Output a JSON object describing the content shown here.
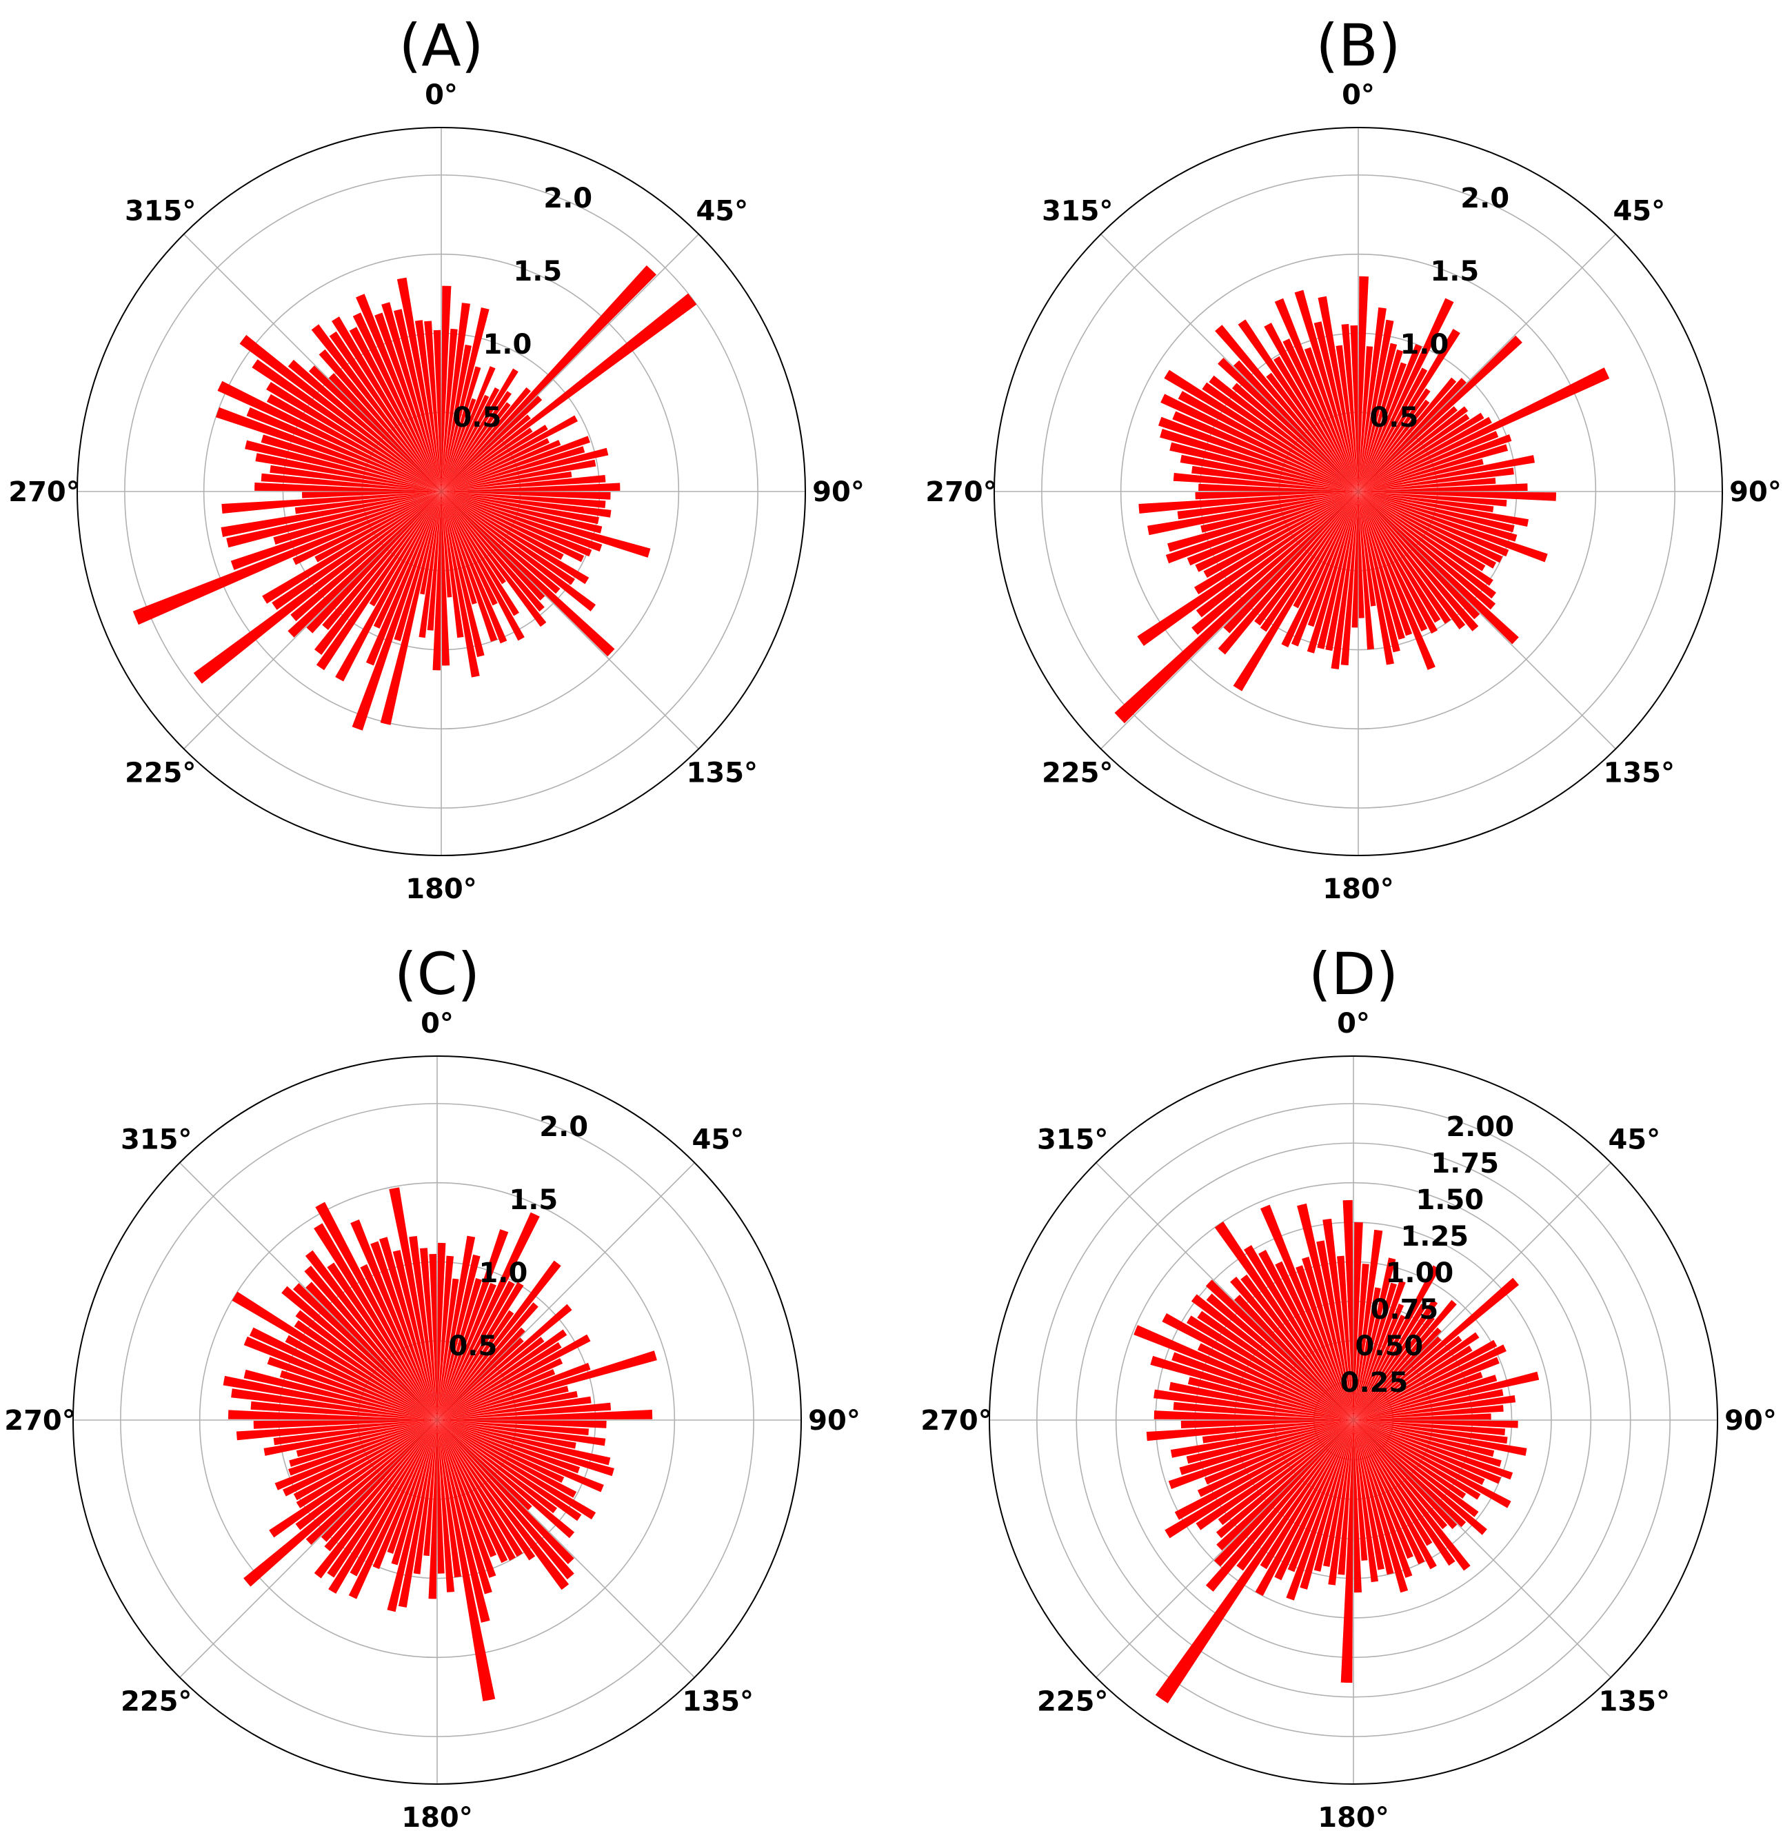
{
  "chart_data": [
    {
      "type": "bar",
      "projection": "polar",
      "title": "(A)",
      "theta_zero": "N",
      "theta_direction": "clockwise",
      "theta_ticks": [
        "0°",
        "45°",
        "90°",
        "135°",
        "180°",
        "225°",
        "270°",
        "315°"
      ],
      "r_ticks": [
        {
          "value": 0.5,
          "label": "0.5"
        },
        {
          "value": 1.0,
          "label": "1.0"
        },
        {
          "value": 1.5,
          "label": "1.5"
        },
        {
          "value": 2.0,
          "label": "2.0"
        }
      ],
      "ylim": [
        0,
        2.3
      ],
      "grid": true,
      "color": "#ff0000",
      "bins": 120,
      "bin_width_deg": 3,
      "values": [
        1.3,
        1.03,
        1.2,
        0.94,
        1.19,
        0.82,
        0.62,
        0.85,
        0.67,
        0.74,
        0.9,
        0.76,
        0.7,
        0.85,
        1.93,
        0.86,
        0.73,
        2.0,
        0.69,
        0.78,
        0.97,
        0.75,
        0.81,
        0.99,
        0.94,
        1.08,
        0.99,
        0.83,
        1.04,
        1.13,
        1.07,
        1.04,
        1.08,
        1.01,
        1.04,
        1.37,
        1.07,
        1.02,
        0.99,
        0.87,
        1.08,
        1.01,
        1.21,
        0.97,
        1.48,
        0.93,
        0.98,
        1.06,
        0.7,
        0.91,
        1.06,
        0.79,
        1.03,
        1.0,
        0.74,
        1.07,
        1.19,
        0.93,
        0.67,
        1.1,
        1.13,
        0.88,
        0.93,
        0.66,
        1.51,
        0.98,
        1.59,
        1.18,
        0.95,
        1.35,
        0.84,
        1.35,
        1.28,
        1.13,
        1.21,
        1.31,
        1.23,
        1.94,
        1.28,
        1.31,
        0.9,
        1.03,
        2.09,
        1.4,
        1.1,
        1.39,
        1.41,
        0.93,
        1.39,
        0.88,
        1.18,
        1.14,
        1.09,
        1.19,
        1.27,
        1.18,
        1.5,
        1.32,
        1.55,
        1.24,
        1.28,
        1.43,
        1.58,
        1.25,
        1.13,
        1.01,
        1.16,
        1.31,
        1.21,
        1.28,
        1.17,
        1.24,
        1.34,
        1.19,
        1.24,
        1.18,
        1.37,
        1.09,
        1.08,
        1.02
      ]
    },
    {
      "type": "bar",
      "projection": "polar",
      "title": "(B)",
      "theta_zero": "N",
      "theta_direction": "clockwise",
      "theta_ticks": [
        "0°",
        "45°",
        "90°",
        "135°",
        "180°",
        "225°",
        "270°",
        "315°"
      ],
      "r_ticks": [
        {
          "value": 0.5,
          "label": "0.5"
        },
        {
          "value": 1.0,
          "label": "1.0"
        },
        {
          "value": 1.5,
          "label": "1.5"
        },
        {
          "value": 2.0,
          "label": "2.0"
        }
      ],
      "ylim": [
        0,
        2.3
      ],
      "grid": true,
      "color": "#ff0000",
      "bins": 120,
      "bin_width_deg": 3,
      "values": [
        1.36,
        0.92,
        1.17,
        1.1,
        0.96,
        0.93,
        0.86,
        1.0,
        1.34,
        0.88,
        1.19,
        0.78,
        0.72,
        0.93,
        0.97,
        1.4,
        0.81,
        0.86,
        0.84,
        0.92,
        0.95,
        1.74,
        0.95,
        1.02,
        0.98,
        0.81,
        1.13,
        0.99,
        0.87,
        1.07,
        1.25,
        0.94,
        0.86,
        1.09,
        1.01,
        1.04,
        1.26,
        1.02,
        1.0,
        0.98,
        0.93,
        1.02,
        1.08,
        1.12,
        1.37,
        1.09,
        1.14,
        1.08,
        1.0,
        0.96,
        1.01,
        0.97,
        1.21,
        0.96,
        0.97,
        1.04,
        1.11,
        0.73,
        1.0,
        0.8,
        0.86,
        1.1,
        1.13,
        1.02,
        1.02,
        1.06,
        0.9,
        1.05,
        1.08,
        0.83,
        1.46,
        1.06,
        1.05,
        1.33,
        1.21,
        2.08,
        1.36,
        1.27,
        1.67,
        1.2,
        1.1,
        1.13,
        1.16,
        1.28,
        1.25,
        1.02,
        1.35,
        1.15,
        1.39,
        1.03,
        1.01,
        1.17,
        1.06,
        1.14,
        1.22,
        1.3,
        1.33,
        1.26,
        1.37,
        1.28,
        1.42,
        1.18,
        1.17,
        1.03,
        1.2,
        1.12,
        1.36,
        0.93,
        1.3,
        0.99,
        1.2,
        1.06,
        1.31,
        0.96,
        1.32,
        1.1,
        1.25,
        0.93,
        1.06,
        1.05
      ]
    },
    {
      "type": "bar",
      "projection": "polar",
      "title": "(C)",
      "theta_zero": "N",
      "theta_direction": "clockwise",
      "theta_ticks": [
        "0°",
        "45°",
        "90°",
        "135°",
        "180°",
        "225°",
        "270°",
        "315°"
      ],
      "r_ticks": [
        {
          "value": 0.5,
          "label": "0.5"
        },
        {
          "value": 1.0,
          "label": "1.0"
        },
        {
          "value": 1.5,
          "label": "1.5"
        },
        {
          "value": 2.0,
          "label": "2.0"
        }
      ],
      "ylim": [
        0,
        2.3
      ],
      "grid": true,
      "color": "#ff0000",
      "bins": 120,
      "bin_width_deg": 3,
      "values": [
        1.12,
        1.04,
        0.9,
        1.18,
        1.07,
        0.93,
        1.27,
        0.93,
        1.44,
        0.99,
        1.01,
        0.83,
        1.25,
        0.96,
        0.79,
        0.74,
        1.1,
        0.84,
        0.98,
        0.91,
        1.09,
        0.87,
        0.8,
        1.02,
        1.44,
        0.85,
        0.9,
        0.98,
        1.1,
        1.36,
        1.07,
        0.96,
        1.07,
        0.89,
        1.12,
        1.16,
        0.95,
        1.13,
        0.88,
        0.99,
        1.16,
        1.09,
        0.94,
        1.12,
        0.81,
        1.23,
        1.3,
        1.33,
        1.06,
        1.0,
        1.0,
        0.99,
        0.93,
        1.05,
        1.14,
        1.31,
        1.8,
        1.0,
        1.09,
        0.97,
        1.13,
        0.86,
        0.98,
        1.2,
        1.24,
        0.95,
        0.89,
        1.01,
        1.24,
        1.11,
        1.27,
        1.19,
        1.24,
        1.07,
        1.04,
        1.12,
        1.58,
        1.11,
        1.27,
        1.03,
        1.02,
        1.07,
        1.1,
        0.99,
        0.97,
        0.91,
        1.11,
        1.04,
        1.27,
        1.16,
        1.32,
        1.18,
        1.31,
        1.37,
        1.25,
        1.03,
        1.13,
        1.31,
        1.3,
        1.08,
        1.5,
        1.08,
        1.11,
        1.27,
        1.23,
        1.18,
        1.26,
        1.33,
        1.19,
        1.44,
        1.55,
        1.08,
        1.36,
        1.19,
        1.2,
        1.1,
        1.49,
        1.17,
        1.09,
        1.05
      ]
    },
    {
      "type": "bar",
      "projection": "polar",
      "title": "(D)",
      "theta_zero": "N",
      "theta_direction": "clockwise",
      "theta_ticks": [
        "0°",
        "45°",
        "90°",
        "135°",
        "180°",
        "225°",
        "270°",
        "315°"
      ],
      "r_ticks": [
        {
          "value": 0.25,
          "label": "0.25"
        },
        {
          "value": 0.5,
          "label": "0.50"
        },
        {
          "value": 0.75,
          "label": "0.75"
        },
        {
          "value": 1.0,
          "label": "1.00"
        },
        {
          "value": 1.25,
          "label": "1.25"
        },
        {
          "value": 1.5,
          "label": "1.50"
        },
        {
          "value": 1.75,
          "label": "1.75"
        },
        {
          "value": 2.0,
          "label": "2.00"
        }
      ],
      "ylim": [
        0,
        2.3
      ],
      "grid": true,
      "color": "#ff0000",
      "bins": 120,
      "bin_width_deg": 3,
      "values": [
        1.25,
        0.99,
        1.21,
        0.85,
        1.05,
        0.9,
        0.93,
        0.79,
        0.73,
        1.1,
        0.85,
        0.91,
        0.82,
        0.98,
        0.79,
        0.75,
        1.35,
        0.85,
        0.95,
        0.87,
        1.02,
        1.06,
        0.99,
        0.86,
        0.94,
        1.2,
        0.96,
        1.03,
        0.95,
        0.87,
        1.04,
        0.96,
        0.98,
        1.11,
        0.91,
        0.97,
        1.06,
        1.0,
        0.91,
        1.12,
        0.93,
        0.85,
        0.98,
        1.09,
        0.96,
        0.93,
        0.89,
        1.18,
        1.1,
        0.92,
        1.06,
        1.0,
        0.94,
        1.05,
        1.13,
        1.0,
        0.96,
        1.03,
        0.89,
        1.09,
        1.66,
        0.98,
        1.05,
        0.94,
        0.98,
        1.11,
        1.2,
        1.03,
        1.11,
        1.25,
        1.09,
        2.14,
        1.18,
        1.4,
        1.25,
        1.17,
        1.12,
        1.06,
        1.19,
        1.38,
        1.27,
        1.08,
        1.01,
        1.23,
        1.14,
        1.08,
        1.17,
        0.96,
        1.31,
        1.09,
        1.26,
        1.14,
        1.27,
        1.18,
        1.07,
        1.33,
        1.21,
        1.49,
        1.08,
        1.36,
        1.22,
        1.18,
        1.27,
        1.2,
        1.26,
        1.07,
        1.17,
        1.14,
        1.5,
        1.28,
        1.21,
        1.1,
        1.46,
        1.03,
        1.07,
        1.4,
        1.15,
        1.28,
        1.04,
        1.39
      ]
    }
  ]
}
